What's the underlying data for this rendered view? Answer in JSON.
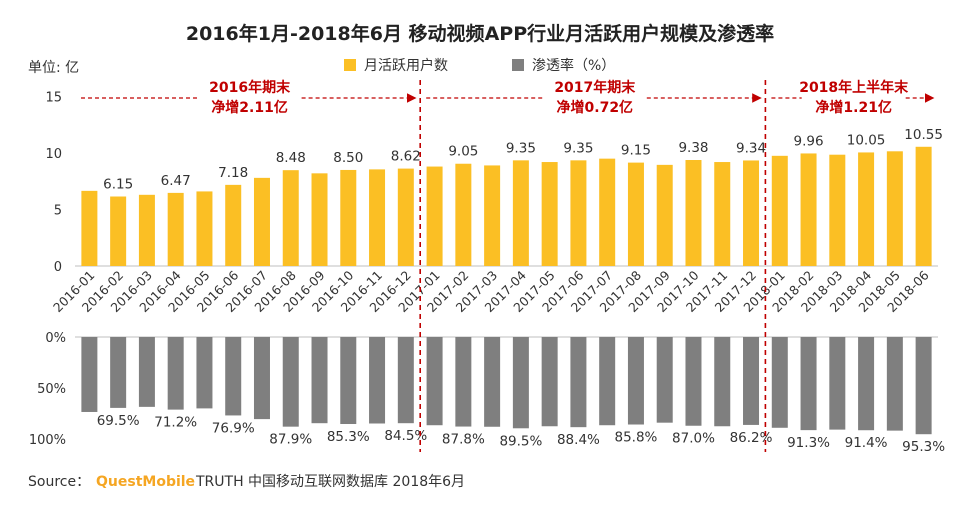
{
  "chart_data": {
    "type": "bar",
    "title": "2016年1月-2018年6月 移动视频APP行业月活跃用户规模及渗透率",
    "unit_label": "单位: 亿",
    "categories": [
      "2016-01",
      "2016-02",
      "2016-03",
      "2016-04",
      "2016-05",
      "2016-06",
      "2016-07",
      "2016-08",
      "2016-09",
      "2016-10",
      "2016-11",
      "2016-12",
      "2017-01",
      "2017-02",
      "2017-03",
      "2017-04",
      "2017-05",
      "2017-06",
      "2017-07",
      "2017-08",
      "2017-09",
      "2017-10",
      "2017-11",
      "2017-12",
      "2018-01",
      "2018-02",
      "2018-03",
      "2018-04",
      "2018-05",
      "2018-06"
    ],
    "series": [
      {
        "name": "月活跃用户数",
        "color": "#fbbf24",
        "values": [
          6.65,
          6.15,
          6.3,
          6.47,
          6.6,
          7.18,
          7.8,
          8.48,
          8.2,
          8.5,
          8.55,
          8.62,
          8.8,
          9.05,
          8.9,
          9.35,
          9.2,
          9.35,
          9.5,
          9.15,
          8.95,
          9.38,
          9.2,
          9.34,
          9.75,
          9.96,
          9.85,
          10.05,
          10.15,
          10.55
        ]
      },
      {
        "name": "渗透率（%）",
        "color": "#7f7f7f",
        "values": [
          73.5,
          69.5,
          68.5,
          71.2,
          70.0,
          76.9,
          80.5,
          87.9,
          84.5,
          85.3,
          84.8,
          84.5,
          86.5,
          87.8,
          88.0,
          89.5,
          87.5,
          88.4,
          86.5,
          85.8,
          84.0,
          87.0,
          87.5,
          86.2,
          89.0,
          91.3,
          90.8,
          91.4,
          91.8,
          95.3
        ]
      }
    ],
    "bar_labels": [
      {
        "index": 1,
        "text": "6.15"
      },
      {
        "index": 3,
        "text": "6.47"
      },
      {
        "index": 5,
        "text": "7.18"
      },
      {
        "index": 7,
        "text": "8.48"
      },
      {
        "index": 9,
        "text": "8.50"
      },
      {
        "index": 11,
        "text": "8.62"
      },
      {
        "index": 13,
        "text": "9.05"
      },
      {
        "index": 15,
        "text": "9.35"
      },
      {
        "index": 17,
        "text": "9.35"
      },
      {
        "index": 19,
        "text": "9.15"
      },
      {
        "index": 21,
        "text": "9.38"
      },
      {
        "index": 23,
        "text": "9.34"
      },
      {
        "index": 25,
        "text": "9.96"
      },
      {
        "index": 27,
        "text": "10.05"
      },
      {
        "index": 29,
        "text": "10.55"
      }
    ],
    "pen_labels": [
      {
        "index": 1,
        "text": "69.5%"
      },
      {
        "index": 3,
        "text": "71.2%"
      },
      {
        "index": 5,
        "text": "76.9%"
      },
      {
        "index": 7,
        "text": "87.9%"
      },
      {
        "index": 9,
        "text": "85.3%"
      },
      {
        "index": 11,
        "text": "84.5%"
      },
      {
        "index": 13,
        "text": "87.8%"
      },
      {
        "index": 15,
        "text": "89.5%"
      },
      {
        "index": 17,
        "text": "88.4%"
      },
      {
        "index": 19,
        "text": "85.8%"
      },
      {
        "index": 21,
        "text": "87.0%"
      },
      {
        "index": 23,
        "text": "86.2%"
      },
      {
        "index": 25,
        "text": "91.3%"
      },
      {
        "index": 27,
        "text": "91.4%"
      },
      {
        "index": 29,
        "text": "95.3%"
      }
    ],
    "y_top": {
      "ylim": [
        0,
        15
      ],
      "ticks": [
        "0",
        "5",
        "10",
        "15"
      ],
      "tick_values": [
        0,
        5,
        10,
        15
      ]
    },
    "y_bottom": {
      "ylim": [
        0,
        100
      ],
      "ticks": [
        "0%",
        "50%",
        "100%"
      ],
      "tick_values": [
        0,
        50,
        100
      ],
      "inverted": true
    },
    "annotations": [
      {
        "line1": "2016年期末",
        "line2": "净增2.11亿",
        "start_index": 0,
        "end_index": 11
      },
      {
        "line1": "2017年期末",
        "line2": "净增0.72亿",
        "start_index": 12,
        "end_index": 23
      },
      {
        "line1": "2018年上半年末",
        "line2": "净增1.21亿",
        "start_index": 24,
        "end_index": 29
      }
    ],
    "dividers_after_index": [
      11,
      23
    ]
  },
  "source": {
    "prefix": "Source：",
    "brand": "QuestMobile",
    "text": "TRUTH 中国移动互联网数据库 2018年6月"
  }
}
